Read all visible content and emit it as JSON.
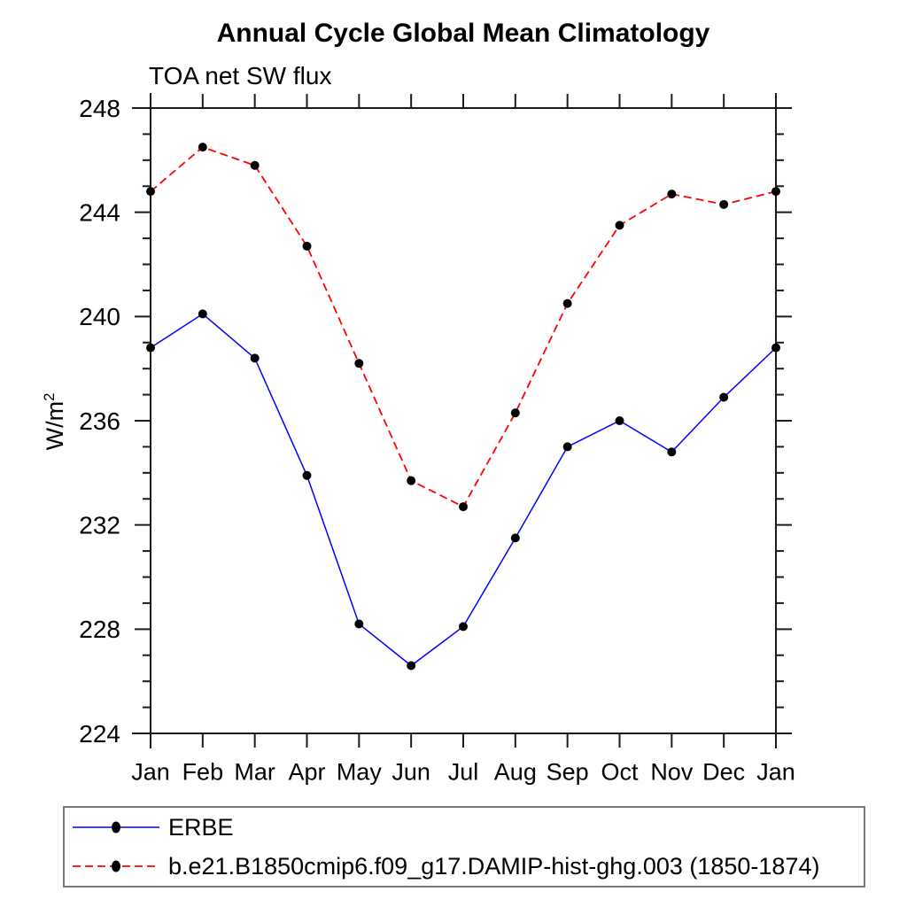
{
  "title": "Annual Cycle Global Mean Climatology",
  "subtitle": "TOA net SW flux",
  "ylabel": {
    "base": "W/m",
    "sup": "2"
  },
  "chart_data": {
    "type": "line",
    "title": "Annual Cycle Global Mean Climatology",
    "subtitle": "TOA net SW flux",
    "ylabel": "W/m^2",
    "xlabel": "",
    "categories": [
      "Jan",
      "Feb",
      "Mar",
      "Apr",
      "May",
      "Jun",
      "Jul",
      "Aug",
      "Sep",
      "Oct",
      "Nov",
      "Dec",
      "Jan"
    ],
    "series": [
      {
        "name": "ERBE",
        "color": "#0000ff",
        "line_style": "solid",
        "marker": "filled-circle",
        "marker_color": "#000000",
        "values": [
          238.8,
          240.1,
          238.4,
          233.9,
          228.2,
          226.6,
          228.1,
          231.5,
          235.0,
          236.0,
          234.8,
          236.9,
          238.8
        ]
      },
      {
        "name": "b.e21.B1850cmip6.f09_g17.DAMIP-hist-ghg.003 (1850-1874)",
        "color": "#ff0000",
        "line_style": "dashed",
        "marker": "filled-circle",
        "marker_color": "#000000",
        "values": [
          244.8,
          246.5,
          245.8,
          242.7,
          238.2,
          233.7,
          232.7,
          236.3,
          240.5,
          243.5,
          244.7,
          244.3,
          244.8
        ]
      }
    ],
    "ylim": [
      224,
      248
    ],
    "ytick_major": [
      224,
      228,
      232,
      236,
      240,
      244,
      248
    ],
    "ytick_minor_step": 1,
    "grid": false,
    "legend_position": "bottom-left-box",
    "axis_color": "#1a1a1a"
  }
}
